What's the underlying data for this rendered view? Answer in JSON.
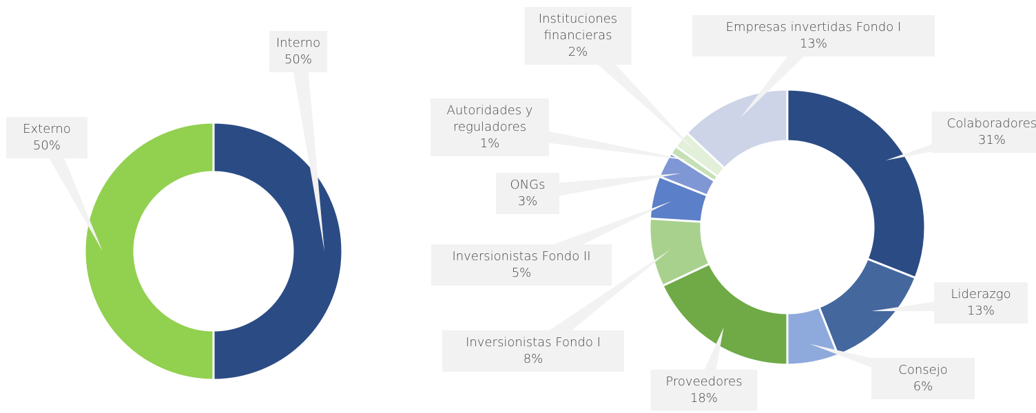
{
  "chart_data": [
    {
      "type": "donut",
      "categories": [
        "Interno",
        "Externo"
      ],
      "values": [
        50,
        50
      ],
      "value_labels": [
        "50%",
        "50%"
      ],
      "colors": [
        "#2b4b84",
        "#92d050"
      ]
    },
    {
      "type": "donut",
      "categories": [
        "Colaboradores",
        "Liderazgo",
        "Consejo",
        "Proveedores",
        "Inversionistas Fondo I",
        "Inversionistas Fondo II",
        "ONGs",
        "Autoridades y reguladores",
        "Instituciones financieras",
        "Empresas invertidas Fondo I"
      ],
      "values": [
        31,
        13,
        6,
        18,
        8,
        5,
        3,
        1,
        2,
        13
      ],
      "value_labels": [
        "31%",
        "13%",
        "6%",
        "18%",
        "8%",
        "5%",
        "3%",
        "1%",
        "2%",
        "13%"
      ],
      "colors": [
        "#2b4b84",
        "#44679e",
        "#8eaadc",
        "#6faa46",
        "#a9d18e",
        "#5b7fc8",
        "#7f97d4",
        "#c5e0b4",
        "#e2efd9",
        "#cdd4e8"
      ]
    }
  ]
}
